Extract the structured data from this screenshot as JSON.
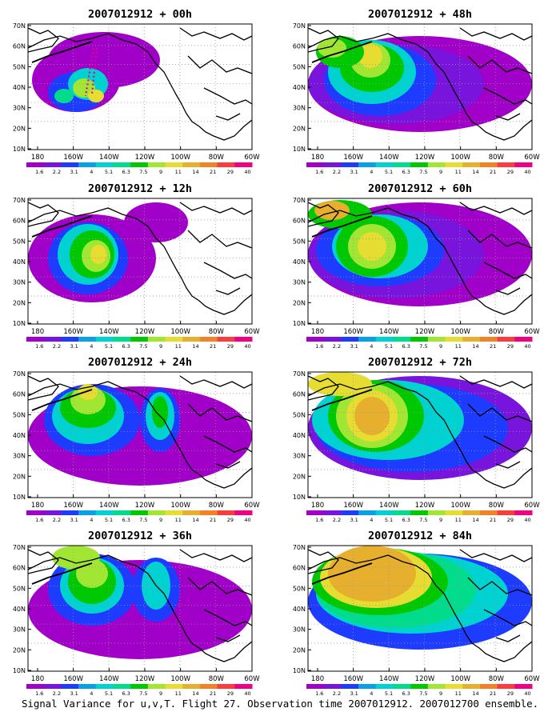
{
  "panels": [
    {
      "title": "2007012912 + 00h",
      "lead": "00h"
    },
    {
      "title": "2007012912 + 48h",
      "lead": "48h"
    },
    {
      "title": "2007012912 + 12h",
      "lead": "12h"
    },
    {
      "title": "2007012912 + 60h",
      "lead": "60h"
    },
    {
      "title": "2007012912 + 24h",
      "lead": "24h"
    },
    {
      "title": "2007012912 + 72h",
      "lead": "72h"
    },
    {
      "title": "2007012912 + 36h",
      "lead": "36h"
    },
    {
      "title": "2007012912 + 84h",
      "lead": "84h"
    }
  ],
  "lat_labels": [
    "70N",
    "60N",
    "50N",
    "40N",
    "30N",
    "20N",
    "10N"
  ],
  "lon_labels": [
    "180",
    "160W",
    "140W",
    "120W",
    "100W",
    "80W",
    "60W"
  ],
  "colorbar": {
    "labels": [
      "1.6",
      "2.2",
      "3.1",
      "4",
      "5.1",
      "6.3",
      "7.5",
      "9",
      "11",
      "14",
      "21",
      "29",
      "40"
    ],
    "colors": [
      "#a000c8",
      "#7814dc",
      "#1e3cff",
      "#0aa0e6",
      "#00d2d2",
      "#00dc8c",
      "#00c800",
      "#a0e632",
      "#e6dc32",
      "#e6af2d",
      "#f08228",
      "#fa3c3c",
      "#f00082"
    ]
  },
  "footer": "Signal Variance for u,v,T. Flight 27. Observation time 2007012912. 2007012700 ensemble."
}
